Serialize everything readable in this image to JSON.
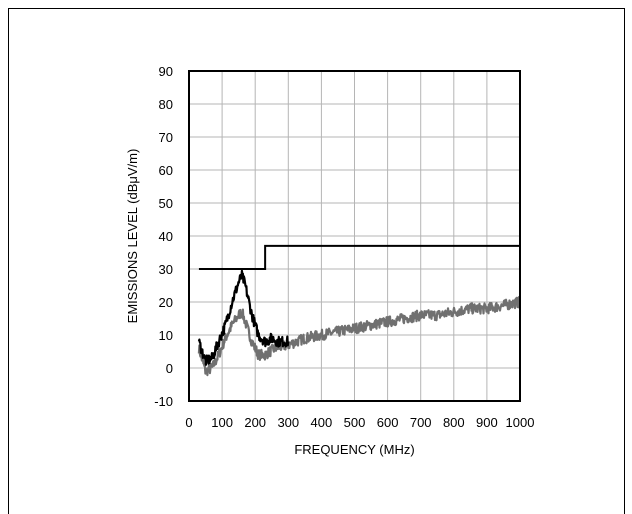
{
  "chart_data": {
    "type": "line",
    "title": "",
    "xlabel": "FREQUENCY (MHz)",
    "ylabel": "EMISSIONS LEVEL (dBμV/m)",
    "xlim": [
      0,
      1000
    ],
    "ylim": [
      -10,
      90
    ],
    "xticks": [
      0,
      100,
      200,
      300,
      400,
      500,
      600,
      700,
      800,
      900,
      1000
    ],
    "yticks": [
      -10,
      0,
      10,
      20,
      30,
      40,
      50,
      60,
      70,
      80,
      90
    ],
    "grid": true,
    "legend": "none",
    "series": [
      {
        "color": "#000000",
        "style": "step",
        "x": [
          30,
          230,
          230,
          1000
        ],
        "y": [
          30,
          30,
          37,
          37
        ]
      },
      {
        "color": "#000000",
        "style": "noisy",
        "x": [
          30,
          50,
          70,
          90,
          110,
          130,
          150,
          160,
          170,
          190,
          210,
          230,
          250,
          270,
          300
        ],
        "y": [
          8,
          2,
          3,
          8,
          13,
          20,
          26,
          28,
          25,
          16,
          10,
          8,
          9,
          8,
          8
        ]
      },
      {
        "color": "#707070",
        "style": "noisy",
        "x": [
          30,
          50,
          70,
          90,
          110,
          130,
          150,
          160,
          170,
          190,
          210,
          230,
          260,
          300,
          350,
          400,
          450,
          500,
          550,
          600,
          650,
          700,
          750,
          800,
          850,
          900,
          950,
          1000
        ],
        "y": [
          6,
          -1,
          0,
          4,
          9,
          13,
          16,
          17,
          14,
          8,
          4,
          4,
          6,
          7,
          9,
          10,
          11,
          12,
          13,
          14,
          15,
          16,
          16,
          17,
          18,
          18,
          19,
          20
        ]
      }
    ]
  }
}
